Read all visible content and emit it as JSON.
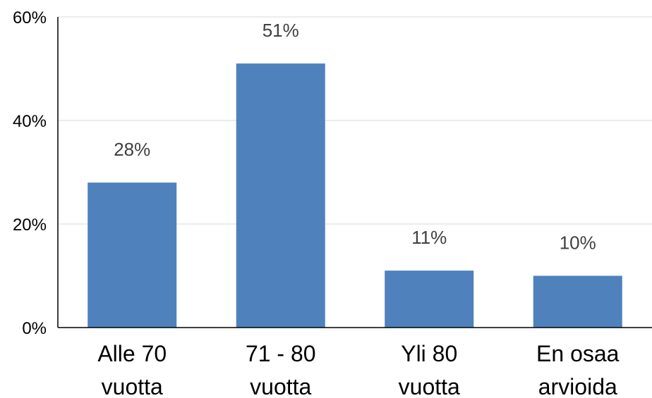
{
  "chart_data": {
    "type": "bar",
    "title": "",
    "xlabel": "",
    "ylabel": "",
    "categories": [
      [
        "Alle 70",
        "vuotta"
      ],
      [
        "71 - 80",
        "vuotta"
      ],
      [
        "Yli 80",
        "vuotta"
      ],
      [
        "En osaa",
        "arvioida"
      ]
    ],
    "values": [
      28,
      51,
      11,
      10
    ],
    "data_labels": [
      "28%",
      "51%",
      "11%",
      "10%"
    ],
    "ylim": [
      0,
      60
    ],
    "yticks": [
      0,
      20,
      40,
      60
    ],
    "ytick_labels": [
      "0%",
      "20%",
      "40%",
      "60%"
    ],
    "grid": true,
    "legend": "none",
    "colors": {
      "bar": "#4F81BD",
      "grid": "#D9D9D9",
      "axis": "#000000",
      "data_label": "#404040"
    }
  }
}
